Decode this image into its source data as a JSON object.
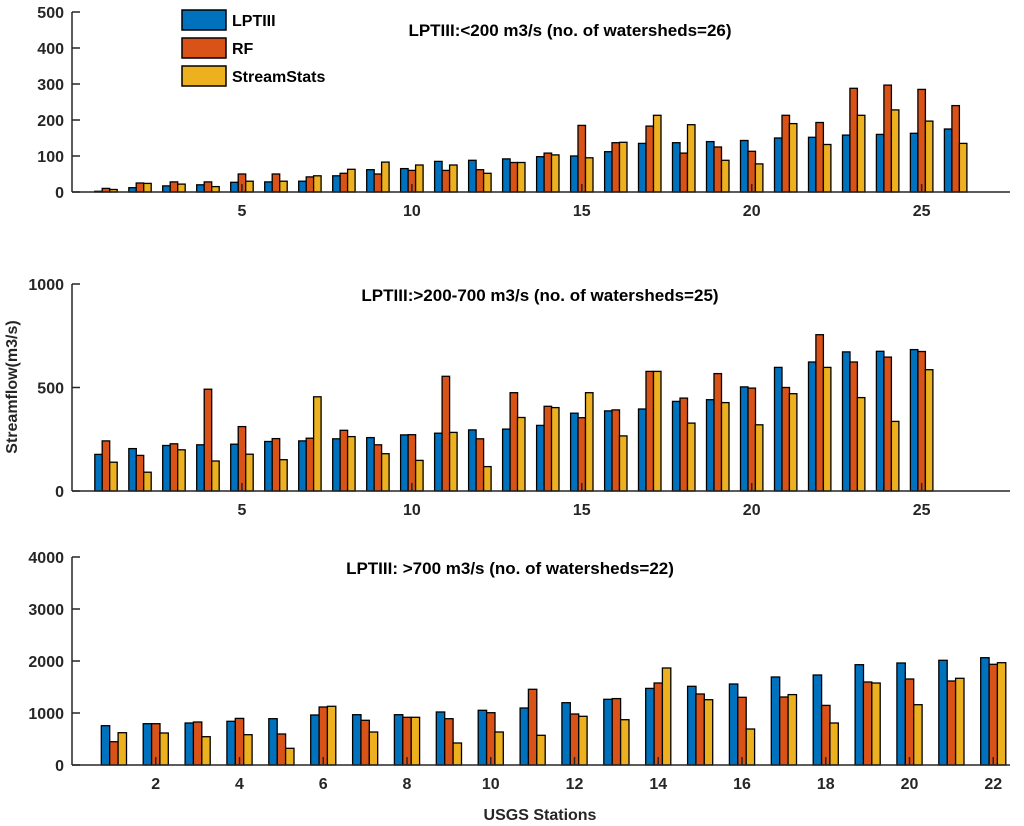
{
  "ylabel": "Streamflow(m3/s)",
  "xlabel": "USGS Stations",
  "legend": {
    "placement": "top-left",
    "entries": [
      "LPTIII",
      "RF",
      "StreamStats"
    ]
  },
  "colors": {
    "LPTIII": "#0072BD",
    "RF": "#D95319",
    "StreamStats": "#EDB120"
  },
  "chart_data": [
    {
      "type": "bar",
      "title": "LPTIII:<200 m3/s (no. of watersheds=26)",
      "ylim": [
        0,
        500
      ],
      "yticks": [
        "0",
        "100",
        "200",
        "300",
        "400",
        "500"
      ],
      "xticks": [
        "5",
        "10",
        "15",
        "20",
        "25"
      ],
      "x": [
        1,
        2,
        3,
        4,
        5,
        6,
        7,
        8,
        9,
        10,
        11,
        12,
        13,
        14,
        15,
        16,
        17,
        18,
        19,
        20,
        21,
        22,
        23,
        24,
        25,
        26
      ],
      "series": [
        {
          "name": "LPTIII",
          "values": [
            2,
            12,
            17,
            20,
            27,
            28,
            30,
            45,
            62,
            65,
            85,
            88,
            92,
            98,
            100,
            112,
            135,
            137,
            140,
            143,
            150,
            152,
            158,
            160,
            163,
            175
          ]
        },
        {
          "name": "RF",
          "values": [
            10,
            25,
            28,
            28,
            50,
            50,
            42,
            52,
            50,
            60,
            60,
            62,
            82,
            108,
            185,
            137,
            183,
            108,
            125,
            113,
            213,
            193,
            288,
            297,
            285,
            240
          ]
        },
        {
          "name": "StreamStats",
          "values": [
            7,
            24,
            22,
            15,
            30,
            30,
            45,
            63,
            83,
            75,
            75,
            52,
            82,
            103,
            95,
            138,
            213,
            187,
            88,
            78,
            190,
            132,
            213,
            228,
            197,
            135
          ]
        }
      ]
    },
    {
      "type": "bar",
      "title": "LPTIII:>200-700 m3/s (no. of watersheds=25)",
      "ylim": [
        0,
        1000
      ],
      "yticks": [
        "0",
        "500",
        "1000"
      ],
      "xticks": [
        "5",
        "10",
        "15",
        "20",
        "25"
      ],
      "x": [
        1,
        2,
        3,
        4,
        5,
        6,
        7,
        8,
        9,
        10,
        11,
        12,
        13,
        14,
        15,
        16,
        17,
        18,
        19,
        20,
        21,
        22,
        23,
        24,
        25
      ],
      "series": [
        {
          "name": "LPTIII",
          "values": [
            177,
            205,
            220,
            223,
            226,
            239,
            242,
            252,
            258,
            271,
            279,
            295,
            299,
            317,
            376,
            387,
            396,
            433,
            441,
            503,
            597,
            623,
            672,
            675,
            683
          ]
        },
        {
          "name": "RF",
          "values": [
            242,
            172,
            228,
            492,
            311,
            253,
            255,
            293,
            223,
            272,
            554,
            252,
            475,
            409,
            354,
            392,
            578,
            449,
            567,
            497,
            500,
            755,
            623,
            647,
            674
          ]
        },
        {
          "name": "StreamStats",
          "values": [
            139,
            91,
            199,
            145,
            178,
            151,
            455,
            263,
            180,
            148,
            283,
            118,
            355,
            403,
            475,
            266,
            578,
            328,
            427,
            320,
            470,
            597,
            451,
            336,
            586
          ]
        }
      ]
    },
    {
      "type": "bar",
      "title": "LPTIII: >700 m3/s (no. of watersheds=22)",
      "ylim": [
        0,
        4000
      ],
      "yticks": [
        "0",
        "1000",
        "2000",
        "3000",
        "4000"
      ],
      "xticks": [
        "2",
        "4",
        "6",
        "8",
        "10",
        "12",
        "14",
        "16",
        "18",
        "20",
        "22"
      ],
      "x": [
        1,
        2,
        3,
        4,
        5,
        6,
        7,
        8,
        9,
        10,
        11,
        12,
        13,
        14,
        15,
        16,
        17,
        18,
        19,
        20,
        21,
        22
      ],
      "series": [
        {
          "name": "LPTIII",
          "values": [
            756,
            795,
            808,
            840,
            891,
            962,
            968,
            968,
            1019,
            1051,
            1096,
            1199,
            1263,
            1474,
            1513,
            1558,
            1692,
            1731,
            1929,
            1962,
            2013,
            2064
          ]
        },
        {
          "name": "RF",
          "values": [
            449,
            795,
            827,
            897,
            596,
            1115,
            859,
            917,
            891,
            1006,
            1455,
            981,
            1276,
            1577,
            1365,
            1301,
            1308,
            1147,
            1596,
            1654,
            1615,
            1936
          ]
        },
        {
          "name": "StreamStats",
          "values": [
            622,
            615,
            545,
            583,
            321,
            1128,
            635,
            917,
            423,
            635,
            571,
            936,
            872,
            1865,
            1256,
            692,
            1353,
            808,
            1577,
            1160,
            1667,
            1968
          ]
        }
      ]
    }
  ]
}
